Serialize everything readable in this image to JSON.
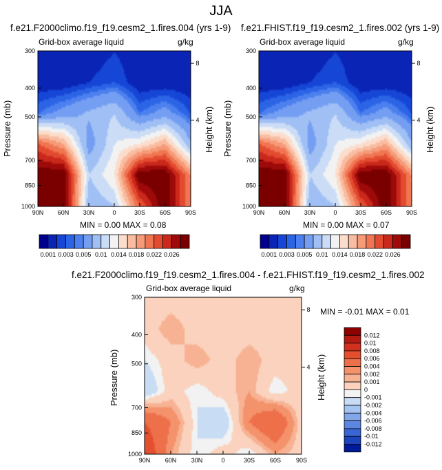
{
  "title": "JJA",
  "panels": [
    {
      "title": "f.e21.F2000climo.f19_f19.cesm2_1.fires.004 (yrs 1-9)",
      "subtitle_left": "Grid-box average liquid",
      "subtitle_right": "g/kg",
      "stats": "MIN =  0.00  MAX =  0.08"
    },
    {
      "title": "f.e21.FHIST.f19_f19.cesm2_1.fires.002 (yrs 1-9)",
      "subtitle_left": "Grid-box average liquid",
      "subtitle_right": "g/kg",
      "stats": "MIN =  0.00  MAX =  0.07"
    },
    {
      "title": "f.e21.F2000climo.f19_f19.cesm2_1.fires.004 - f.e21.FHIST.f19_f19.cesm2_1.fires.002",
      "subtitle_left": "Grid-box average liquid",
      "subtitle_right": "g/kg",
      "stats": "MIN = -0.01  MAX =  0.01"
    }
  ],
  "axes": {
    "ylabel": "Pressure (mb)",
    "y2label": "Height (km)",
    "pressure_ticks": [
      "300",
      "400",
      "500",
      "700",
      "850",
      "1000"
    ],
    "height_ticks": [
      "8",
      "4"
    ],
    "lat_ticks": [
      "90N",
      "60N",
      "30N",
      "0",
      "30S",
      "60S",
      "90S"
    ]
  },
  "colorbar_top": {
    "labels": [
      "0.001",
      "0.003",
      "0.005",
      "0.01",
      "0.014",
      "0.018",
      "0.022",
      "0.026"
    ],
    "colors": [
      "#00008f",
      "#0a24b5",
      "#1646d6",
      "#2c64e6",
      "#4c80ef",
      "#749ef2",
      "#a0bff5",
      "#cadcf6",
      "#f2f2f2",
      "#fcdccb",
      "#f9bca0",
      "#f69a78",
      "#f07552",
      "#e34b30",
      "#c9281b",
      "#9e0a0a",
      "#7a0000"
    ]
  },
  "colorbar_diff": {
    "labels": [
      "0.012",
      "0.01",
      "0.008",
      "0.006",
      "0.004",
      "0.002",
      "0.001",
      "0",
      "-0.001",
      "-0.002",
      "-0.004",
      "-0.006",
      "-0.008",
      "-0.01",
      "-0.012"
    ],
    "colors": [
      "#8f0000",
      "#b41a12",
      "#d0301d",
      "#e4502f",
      "#ee704b",
      "#f4926b",
      "#f7b293",
      "#fad2bd",
      "#f2f2f2",
      "#c8dcf4",
      "#a6c4f0",
      "#82a6ea",
      "#5c86e0",
      "#3866d4",
      "#1c44bc",
      "#001a9a"
    ]
  },
  "chart_data": [
    {
      "type": "heatmap",
      "title": "f.e21.F2000climo.f19_f19.cesm2_1.fires.004 (yrs 1-9)",
      "xlabel": "",
      "ylabel": "Pressure (mb)",
      "x": [
        "90N",
        "60N",
        "30N",
        "0",
        "30S",
        "60S",
        "90S"
      ],
      "y": [
        300,
        400,
        500,
        700,
        850,
        1000
      ],
      "values": [
        [
          0.001,
          0.001,
          0.001,
          0.002,
          0.001,
          0.001,
          0.001
        ],
        [
          0.001,
          0.001,
          0.002,
          0.003,
          0.001,
          0.001,
          0.001
        ],
        [
          0.004,
          0.006,
          0.008,
          0.01,
          0.004,
          0.006,
          0.003
        ],
        [
          0.022,
          0.018,
          0.006,
          0.012,
          0.014,
          0.018,
          0.008
        ],
        [
          0.03,
          0.03,
          0.01,
          0.014,
          0.03,
          0.03,
          0.02
        ],
        [
          0.03,
          0.03,
          0.008,
          0.01,
          0.022,
          0.03,
          0.02
        ]
      ],
      "min": 0.0,
      "max": 0.08
    },
    {
      "type": "heatmap",
      "title": "f.e21.FHIST.f19_f19.cesm2_1.fires.002 (yrs 1-9)",
      "xlabel": "",
      "ylabel": "Pressure (mb)",
      "x": [
        "90N",
        "60N",
        "30N",
        "0",
        "30S",
        "60S",
        "90S"
      ],
      "y": [
        300,
        400,
        500,
        700,
        850,
        1000
      ],
      "values": [
        [
          0.001,
          0.001,
          0.001,
          0.002,
          0.001,
          0.001,
          0.001
        ],
        [
          0.001,
          0.001,
          0.002,
          0.003,
          0.001,
          0.001,
          0.001
        ],
        [
          0.004,
          0.006,
          0.008,
          0.01,
          0.004,
          0.006,
          0.003
        ],
        [
          0.022,
          0.018,
          0.006,
          0.012,
          0.014,
          0.018,
          0.008
        ],
        [
          0.03,
          0.03,
          0.01,
          0.014,
          0.03,
          0.03,
          0.02
        ],
        [
          0.03,
          0.03,
          0.008,
          0.01,
          0.022,
          0.03,
          0.02
        ]
      ],
      "min": 0.0,
      "max": 0.07
    },
    {
      "type": "heatmap",
      "title": "f.e21.F2000climo.f19_f19.cesm2_1.fires.004 - f.e21.FHIST.f19_f19.cesm2_1.fires.002",
      "xlabel": "",
      "ylabel": "Pressure (mb)",
      "x": [
        "90N",
        "60N",
        "30N",
        "0",
        "30S",
        "60S",
        "90S"
      ],
      "y": [
        300,
        400,
        500,
        700,
        850,
        1000
      ],
      "values": [
        [
          0,
          0,
          0,
          0,
          0,
          0,
          0
        ],
        [
          0,
          0.001,
          0,
          0,
          0,
          0,
          0
        ],
        [
          -0.001,
          0,
          0.001,
          0,
          0.001,
          0,
          0
        ],
        [
          -0.002,
          0,
          -0.001,
          0,
          0.001,
          -0.001,
          0
        ],
        [
          0.004,
          0.002,
          -0.001,
          -0.002,
          0.002,
          0.004,
          0
        ],
        [
          0.006,
          0.001,
          -0.001,
          0,
          -0.001,
          0.001,
          0
        ]
      ],
      "min": -0.01,
      "max": 0.01
    }
  ]
}
